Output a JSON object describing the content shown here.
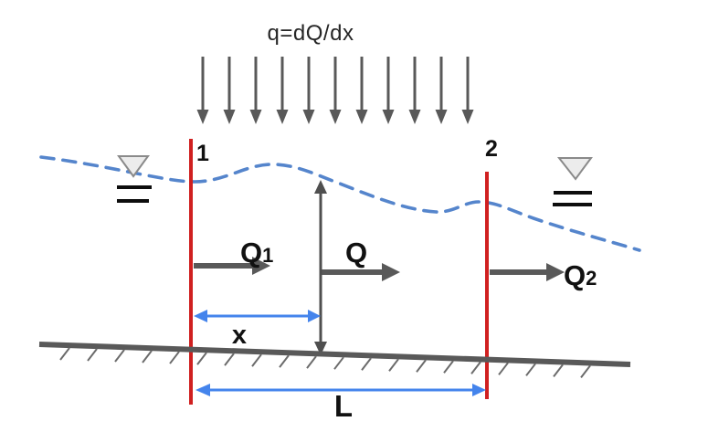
{
  "labels": {
    "inflow_equation": "q=dQ/dx",
    "section_1": "1",
    "section_2": "2",
    "discharge_in_main": "Q",
    "discharge_in_sub": "1",
    "discharge_mid": "Q",
    "discharge_out_main": "Q",
    "discharge_out_sub": "2",
    "distance_x": "x",
    "length_L": "L"
  },
  "colors": {
    "section_line": "#d02020",
    "water_surface_dash": "#5585cc",
    "dimension_arrow": "#4484ec",
    "flow_arrow": "#595959",
    "bed_line": "#595959",
    "hatch": "#6b6b6b",
    "label_text": "#111111"
  },
  "inflow_arrows": {
    "count": 11
  },
  "bed_hatch": {
    "count": 20
  },
  "icons": {
    "water_level_left": "nabla-water-level-icon",
    "water_level_right": "nabla-water-level-icon"
  }
}
